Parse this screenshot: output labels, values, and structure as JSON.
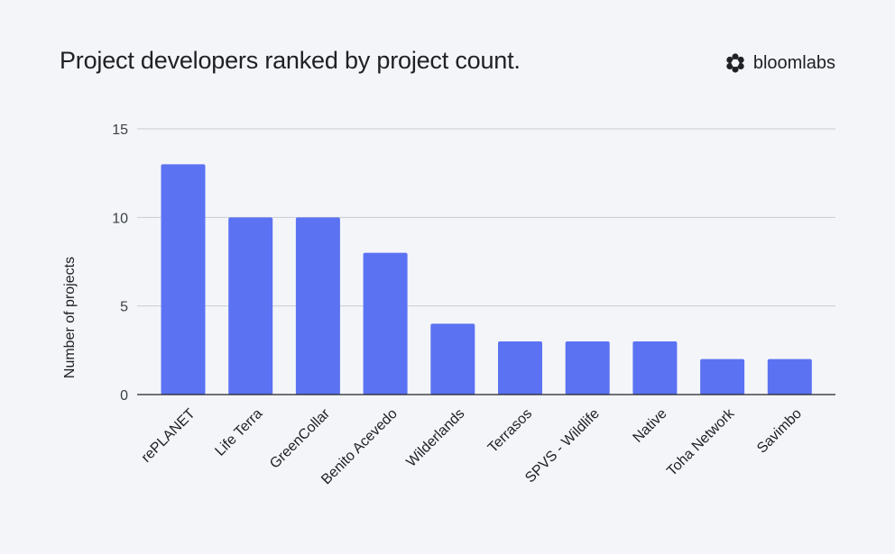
{
  "title": "Project developers ranked by project count.",
  "brand": {
    "name": "bloomlabs",
    "icon": "bloomlabs-logo-icon"
  },
  "colors": {
    "bar": "#5b72f2",
    "grid": "#c9ccd2",
    "axis": "#202124",
    "background": "#f3f5f9"
  },
  "chart_data": {
    "type": "bar",
    "categories": [
      "rePLANET",
      "Life Terra",
      "GreenCollar",
      "Benito Acevedo",
      "Wilderlands",
      "Terrasos",
      "SPVS - Wildlife",
      "Native",
      "Toha Network",
      "Savimbo"
    ],
    "values": [
      13,
      10,
      10,
      8,
      4,
      3,
      3,
      3,
      2,
      2
    ],
    "xlabel": "",
    "ylabel": "Number of projects",
    "ylim": [
      0,
      15
    ],
    "yticks": [
      0,
      5,
      10,
      15
    ],
    "grid": true,
    "legend": "none"
  }
}
